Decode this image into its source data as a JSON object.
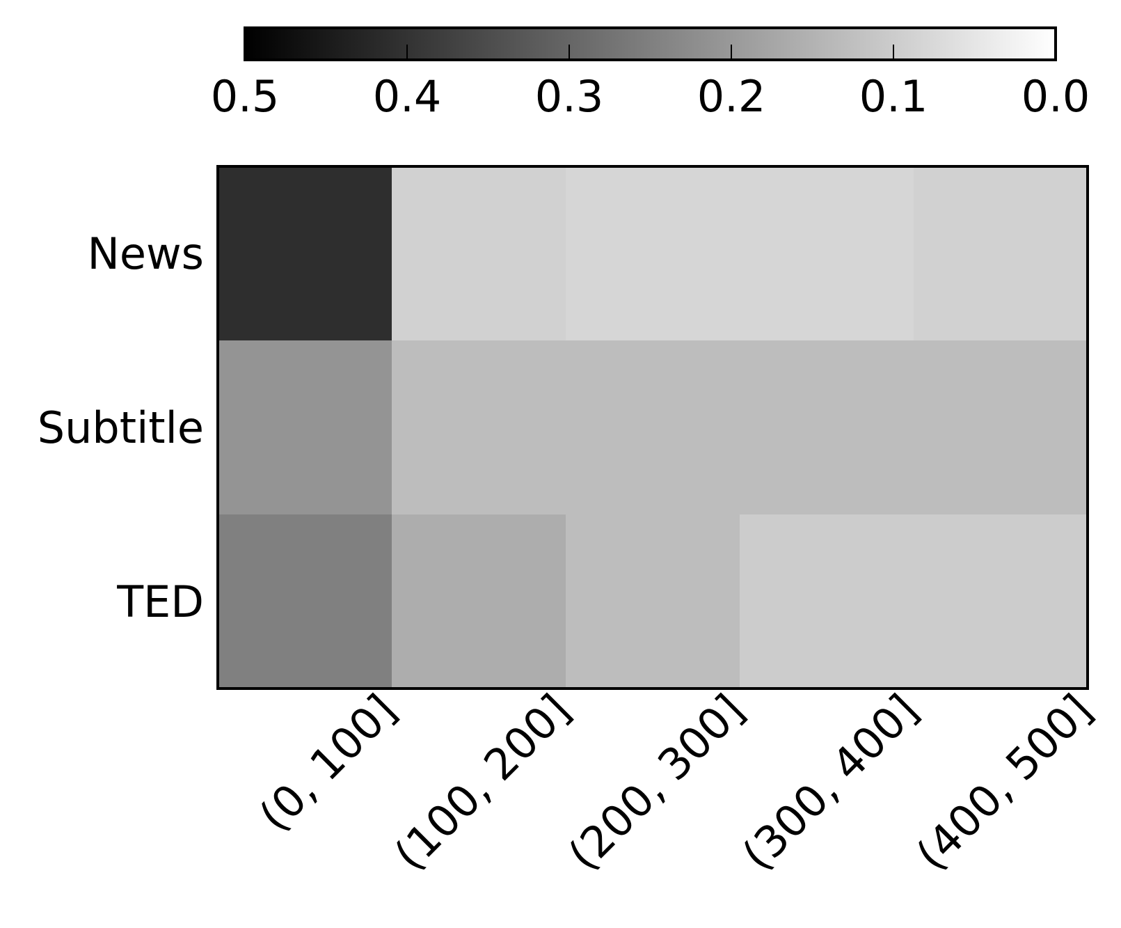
{
  "chart_data": {
    "type": "heatmap",
    "title": "",
    "xlabel": "",
    "ylabel": "",
    "x_categories": [
      "(0, 100]",
      "(100, 200]",
      "(200, 300]",
      "(300, 400]",
      "(400, 500]"
    ],
    "y_categories": [
      "News",
      "Subtitle",
      "TED"
    ],
    "values": [
      [
        0.41,
        0.09,
        0.08,
        0.08,
        0.09
      ],
      [
        0.21,
        0.13,
        0.13,
        0.13,
        0.13
      ],
      [
        0.25,
        0.16,
        0.13,
        0.1,
        0.1
      ]
    ],
    "colorbar": {
      "position": "top",
      "range": [
        0.5,
        0.0
      ],
      "ticks": [
        0.5,
        0.4,
        0.3,
        0.2,
        0.1,
        0.0
      ],
      "tick_labels": [
        "0.5",
        "0.4",
        "0.3",
        "0.2",
        "0.1",
        "0.0"
      ],
      "cmap": "gray"
    },
    "grid": false
  }
}
